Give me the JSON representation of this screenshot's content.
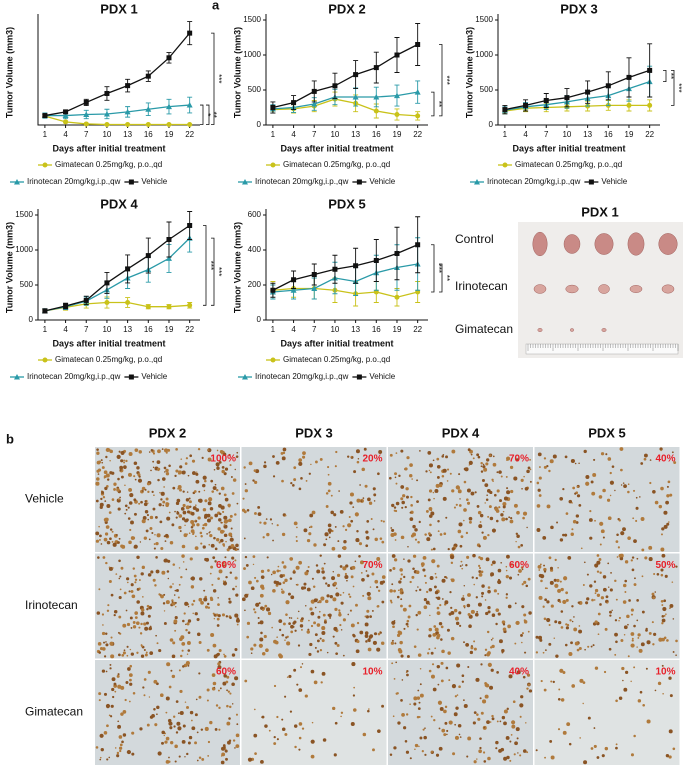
{
  "panel_labels": [
    "a",
    "b"
  ],
  "chart_data": [
    {
      "type": "line",
      "title": "PDX 1",
      "x_label": "Days after initial treatment",
      "y_label": "Tumor Volume (mm3)",
      "x": [
        1,
        4,
        7,
        10,
        13,
        16,
        19,
        22
      ],
      "xlim": [
        0,
        23.5
      ],
      "xticks": [
        1,
        4,
        7,
        10,
        13,
        16,
        19,
        22
      ],
      "ylim": [
        0,
        2000
      ],
      "series": [
        {
          "name": "Gimatecan 0.25mg/kg, p.o.,qd",
          "color": "#c9c21a",
          "marker": "circle",
          "values": [
            170,
            60,
            20,
            10,
            10,
            10,
            10,
            10
          ],
          "errors": [
            20,
            20,
            10,
            5,
            5,
            5,
            5,
            5
          ]
        },
        {
          "name": "Irinotecan 20mg/kg,i.p.,qw",
          "color": "#2a9aa8",
          "marker": "triangle",
          "values": [
            180,
            180,
            200,
            210,
            250,
            300,
            350,
            380
          ],
          "errors": [
            50,
            60,
            80,
            90,
            100,
            120,
            140,
            150
          ]
        },
        {
          "name": "Vehicle",
          "color": "#111111",
          "marker": "square",
          "values": [
            180,
            250,
            430,
            600,
            750,
            930,
            1280,
            1750
          ],
          "errors": [
            20,
            30,
            60,
            130,
            120,
            100,
            100,
            220
          ]
        }
      ],
      "annotations": [
        "***",
        "*",
        "**"
      ]
    },
    {
      "type": "line",
      "title": "PDX 2",
      "x_label": "Days after initial treatment",
      "y_label": "Tumor Volume (mm3)",
      "x": [
        1,
        4,
        7,
        10,
        13,
        16,
        19,
        22
      ],
      "xlim": [
        0,
        23.5
      ],
      "xticks": [
        1,
        4,
        7,
        10,
        13,
        16,
        19,
        22
      ],
      "ylim": [
        0,
        1500
      ],
      "yticks": [
        0,
        500,
        1000,
        1500
      ],
      "series": [
        {
          "name": "Gimatecan 0.25mg/kg, p.o.,qd",
          "color": "#c9c21a",
          "marker": "circle",
          "values": [
            220,
            230,
            270,
            370,
            310,
            200,
            150,
            130
          ],
          "errors": [
            50,
            60,
            80,
            100,
            120,
            100,
            80,
            60
          ]
        },
        {
          "name": "Irinotecan 20mg/kg,i.p.,qw",
          "color": "#2a9aa8",
          "marker": "triangle",
          "values": [
            230,
            250,
            300,
            400,
            400,
            400,
            420,
            470
          ],
          "errors": [
            60,
            70,
            90,
            110,
            130,
            140,
            150,
            160
          ]
        },
        {
          "name": "Vehicle",
          "color": "#111111",
          "marker": "square",
          "values": [
            250,
            320,
            480,
            560,
            720,
            820,
            1000,
            1150
          ],
          "errors": [
            80,
            100,
            150,
            180,
            200,
            220,
            250,
            300
          ]
        }
      ],
      "annotations": [
        "***",
        "**"
      ]
    },
    {
      "type": "line",
      "title": "PDX 3",
      "x_label": "Days after initial treatment",
      "y_label": "Tumor Volume (mm3)",
      "x": [
        1,
        4,
        7,
        10,
        13,
        16,
        19,
        22
      ],
      "xlim": [
        0,
        23.5
      ],
      "xticks": [
        1,
        4,
        7,
        10,
        13,
        16,
        19,
        22
      ],
      "ylim": [
        0,
        1500
      ],
      "yticks": [
        0,
        500,
        1000,
        1500
      ],
      "series": [
        {
          "name": "Gimatecan 0.25mg/kg, p.o.,qd",
          "color": "#c9c21a",
          "marker": "circle",
          "values": [
            200,
            240,
            250,
            260,
            270,
            280,
            280,
            280
          ],
          "errors": [
            40,
            50,
            60,
            60,
            70,
            70,
            80,
            80
          ]
        },
        {
          "name": "Irinotecan 20mg/kg,i.p.,qw",
          "color": "#2a9aa8",
          "marker": "triangle",
          "values": [
            210,
            260,
            290,
            330,
            380,
            420,
            520,
            620
          ],
          "errors": [
            50,
            60,
            70,
            90,
            110,
            140,
            180,
            220
          ]
        },
        {
          "name": "Vehicle",
          "color": "#111111",
          "marker": "square",
          "values": [
            220,
            280,
            350,
            390,
            470,
            560,
            680,
            780
          ],
          "errors": [
            60,
            80,
            100,
            130,
            160,
            200,
            280,
            380
          ]
        }
      ],
      "annotations": [
        "**",
        "***"
      ]
    },
    {
      "type": "line",
      "title": "PDX 4",
      "x_label": "Days after initial treatment",
      "y_label": "Tumor Volume (mm3)",
      "x": [
        1,
        4,
        7,
        10,
        13,
        16,
        19,
        22
      ],
      "xlim": [
        0,
        23.5
      ],
      "xticks": [
        1,
        4,
        7,
        10,
        13,
        16,
        19,
        22
      ],
      "ylim": [
        0,
        1500
      ],
      "yticks": [
        0,
        500,
        1000,
        1500
      ],
      "series": [
        {
          "name": "Gimatecan 0.25mg/kg, p.o.,qd",
          "color": "#c9c21a",
          "marker": "circle",
          "values": [
            130,
            180,
            230,
            250,
            250,
            190,
            190,
            210
          ],
          "errors": [
            20,
            40,
            60,
            80,
            70,
            30,
            30,
            40
          ]
        },
        {
          "name": "Irinotecan 20mg/kg,i.p.,qw",
          "color": "#2a9aa8",
          "marker": "triangle",
          "values": [
            130,
            190,
            270,
            430,
            600,
            720,
            880,
            1170
          ],
          "errors": [
            30,
            40,
            60,
            120,
            150,
            180,
            200,
            200
          ]
        },
        {
          "name": "Vehicle",
          "color": "#111111",
          "marker": "square",
          "values": [
            130,
            200,
            280,
            530,
            730,
            920,
            1150,
            1350
          ],
          "errors": [
            30,
            40,
            60,
            150,
            200,
            250,
            250,
            200
          ]
        }
      ],
      "annotations": [
        "***",
        "***"
      ]
    },
    {
      "type": "line",
      "title": "PDX 5",
      "x_label": "Days after initial treatment",
      "y_label": "Tumor Volume (mm3)",
      "x": [
        1,
        4,
        7,
        10,
        13,
        16,
        19,
        22
      ],
      "xlim": [
        0,
        23.5
      ],
      "xticks": [
        1,
        4,
        7,
        10,
        13,
        16,
        19,
        22
      ],
      "ylim": [
        0,
        600
      ],
      "yticks": [
        0,
        200,
        400,
        600
      ],
      "series": [
        {
          "name": "Gimatecan 0.25mg/kg, p.o.,qd",
          "color": "#c9c21a",
          "marker": "circle",
          "values": [
            170,
            180,
            180,
            170,
            150,
            160,
            130,
            160
          ],
          "errors": [
            50,
            50,
            60,
            70,
            70,
            60,
            50,
            60
          ]
        },
        {
          "name": "Irinotecan 20mg/kg,i.p.,qw",
          "color": "#2a9aa8",
          "marker": "triangle",
          "values": [
            160,
            170,
            180,
            240,
            220,
            270,
            300,
            320
          ],
          "errors": [
            40,
            50,
            60,
            90,
            80,
            100,
            130,
            150
          ]
        },
        {
          "name": "Vehicle",
          "color": "#111111",
          "marker": "square",
          "values": [
            170,
            230,
            260,
            290,
            310,
            340,
            380,
            430
          ],
          "errors": [
            40,
            50,
            60,
            80,
            100,
            120,
            150,
            160
          ]
        }
      ],
      "annotations": [
        "***",
        "**"
      ]
    }
  ],
  "photo": {
    "title": "PDX 1",
    "rows": [
      "Control",
      "Irinotecan",
      "Gimatecan"
    ]
  },
  "ihc": {
    "columns": [
      "PDX 2",
      "PDX 3",
      "PDX 4",
      "PDX 5"
    ],
    "rows": [
      {
        "label": "Vehicle",
        "percents": [
          "100%",
          "20%",
          "70%",
          "40%"
        ]
      },
      {
        "label": "Irinotecan",
        "percents": [
          "60%",
          "70%",
          "60%",
          "50%"
        ]
      },
      {
        "label": "Gimatecan",
        "percents": [
          "60%",
          "10%",
          "40%",
          "10%"
        ]
      }
    ]
  }
}
